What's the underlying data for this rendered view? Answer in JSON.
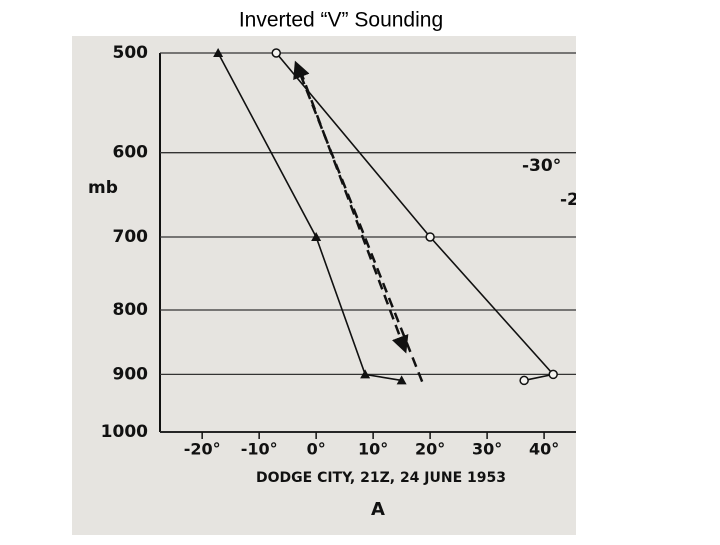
{
  "chart_data": {
    "type": "line",
    "title": "Inverted “V” Sounding",
    "ylabel": "mb",
    "xlabel": "DODGE CITY, 21Z, 24 JUNE 1953",
    "panel_label": "A",
    "annotations": [
      "-30°",
      "-2"
    ],
    "log_y": true,
    "y_inverted": true,
    "grid": true,
    "ylim": [
      500,
      1000
    ],
    "yticks": [
      500,
      600,
      700,
      800,
      900,
      1000
    ],
    "xlim": [
      -27.4,
      45.6
    ],
    "xticks": [
      {
        "value": -20,
        "label": "-20°"
      },
      {
        "value": -10,
        "label": "-10°"
      },
      {
        "value": 0,
        "label": "0°"
      },
      {
        "value": 10,
        "label": "10°"
      },
      {
        "value": 20,
        "label": "20°"
      },
      {
        "value": 30,
        "label": "30°"
      },
      {
        "value": 40,
        "label": "40°"
      }
    ],
    "series": [
      {
        "color": "#111111",
        "marker": "circle",
        "x": [
          -7,
          20,
          41.6,
          36.5
        ],
        "values": [
          500,
          700,
          900,
          910
        ]
      },
      {
        "color": "#111111",
        "marker": "triangle",
        "x": [
          -17.2,
          0,
          8.6,
          15
        ],
        "values": [
          500,
          700,
          900,
          910
        ]
      },
      {
        "color": "#111111",
        "dash": true,
        "x": [
          18.6,
          -3.5
        ],
        "values": [
          912,
          510
        ]
      },
      {
        "color": "#111111",
        "dash": true,
        "x": [
          -2.8,
          15.6
        ],
        "values": [
          516,
          861
        ]
      }
    ]
  }
}
